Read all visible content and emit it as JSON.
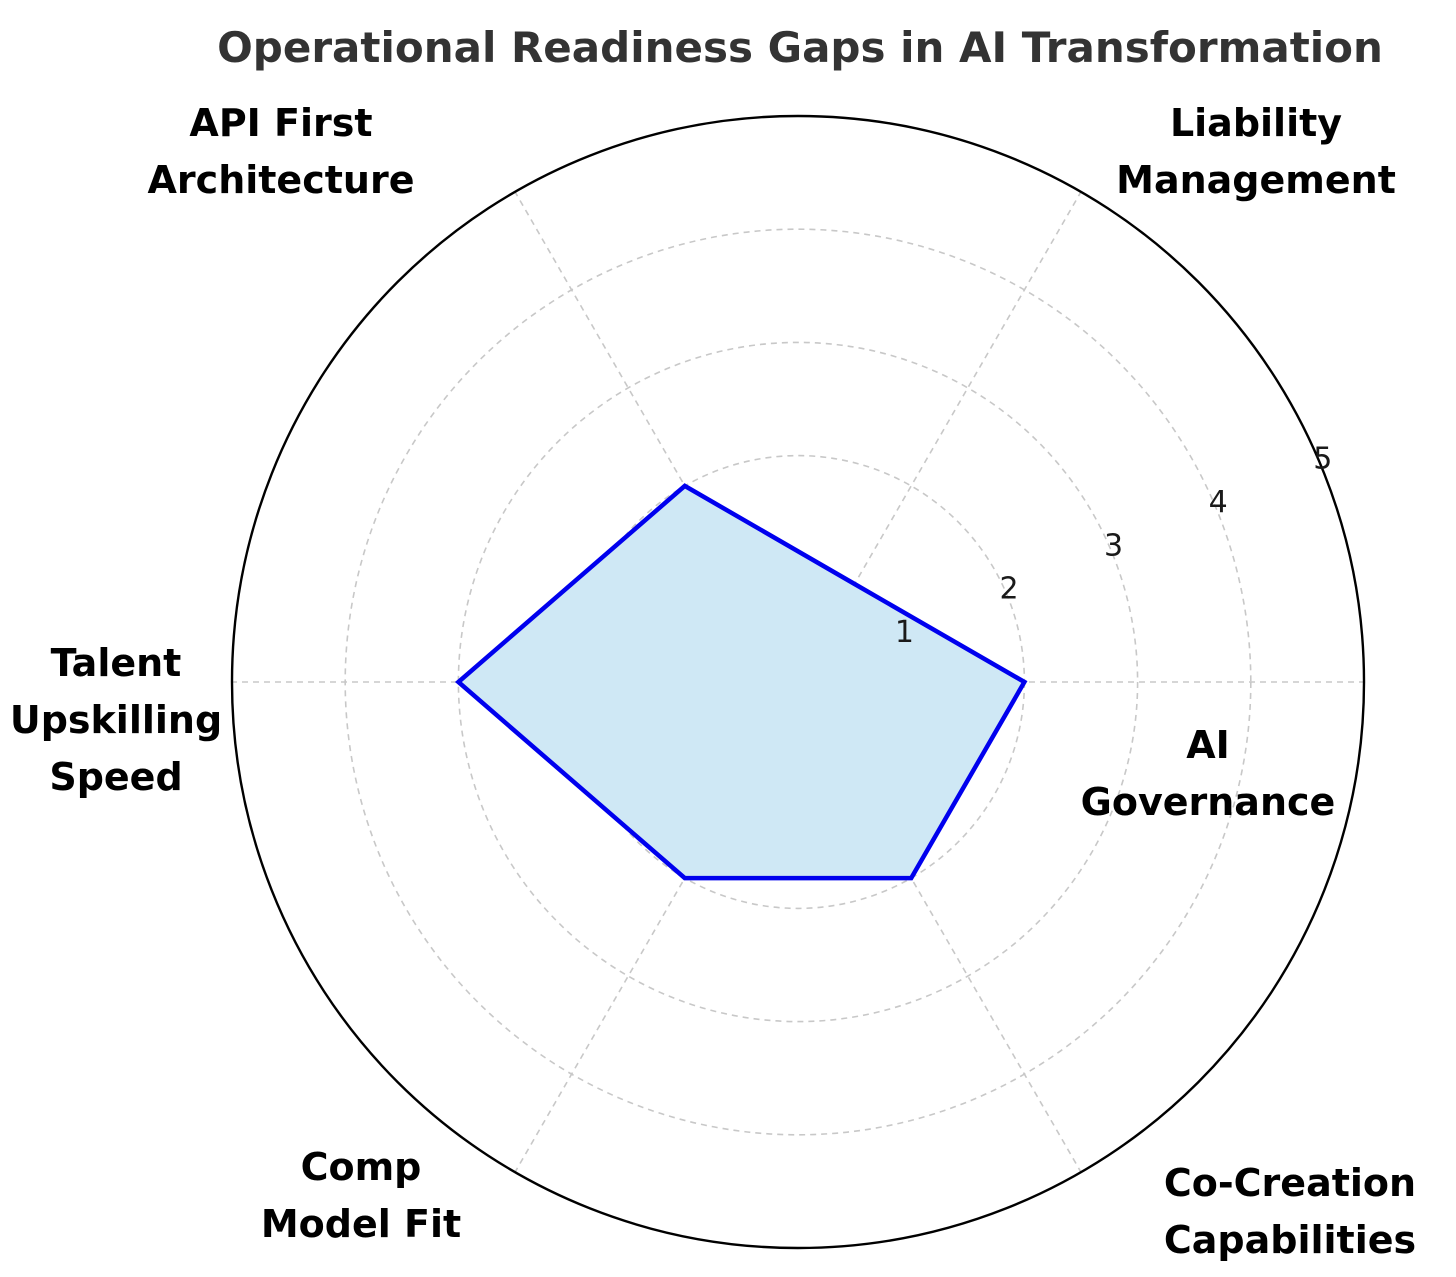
{
  "chart_data": {
    "type": "radar",
    "title": "Operational Readiness Gaps in AI Transformation",
    "axes": [
      {
        "label_lines": [
          "AI",
          "Governance"
        ],
        "value": 2
      },
      {
        "label_lines": [
          "Liability",
          "Management"
        ],
        "value": 1
      },
      {
        "label_lines": [
          "API First",
          "Architecture"
        ],
        "value": 2
      },
      {
        "label_lines": [
          "Talent",
          "Upskilling",
          "Speed"
        ],
        "value": 3
      },
      {
        "label_lines": [
          "Comp",
          "Model Fit"
        ],
        "value": 2
      },
      {
        "label_lines": [
          "Co-Creation",
          "Capabilities"
        ],
        "value": 2
      }
    ],
    "series": [
      {
        "values": [
          2,
          1,
          2,
          3,
          2,
          2
        ]
      }
    ],
    "rlim": [
      0,
      5
    ],
    "rticks": [
      1,
      2,
      3,
      4,
      5
    ],
    "grid": true,
    "colors": {
      "line": "#0000ee",
      "fill": "#cfe8f5",
      "grid": "#c8c8c8",
      "outer": "#000000",
      "title": "#333333"
    }
  }
}
